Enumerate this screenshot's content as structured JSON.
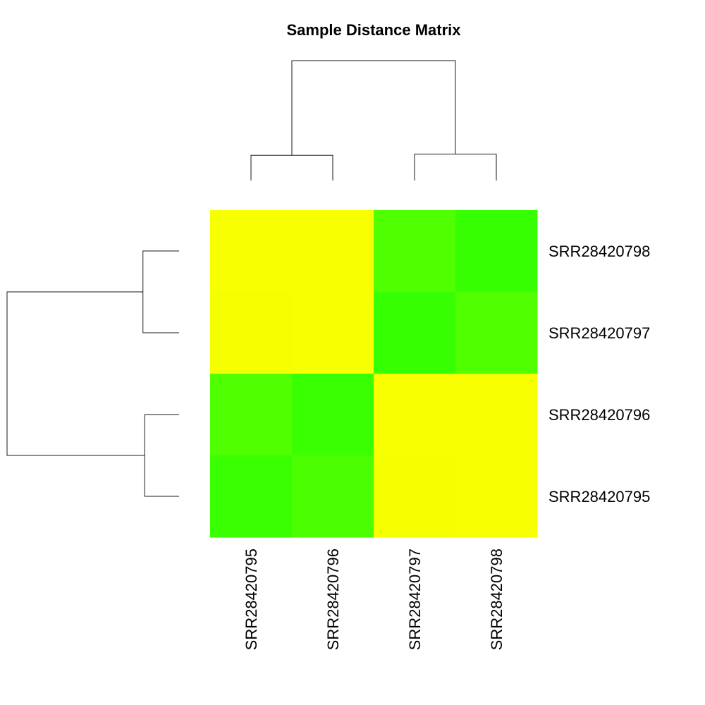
{
  "chart_data": {
    "type": "heatmap",
    "title": "Sample Distance Matrix",
    "columns": [
      "SRR28420795",
      "SRR28420796",
      "SRR28420797",
      "SRR28420798"
    ],
    "rows": [
      "SRR28420798",
      "SRR28420797",
      "SRR28420796",
      "SRR28420795"
    ],
    "values": [
      [
        0.97,
        0.97,
        0.22,
        0.1
      ],
      [
        0.96,
        0.97,
        0.1,
        0.22
      ],
      [
        0.22,
        0.12,
        0.97,
        0.97
      ],
      [
        0.12,
        0.2,
        0.96,
        0.97
      ]
    ],
    "color_scale": {
      "low": "#1EFF00",
      "high": "#FFFF00"
    },
    "column_dendrogram": [
      {
        "left": [
          "SRR28420795"
        ],
        "right": [
          "SRR28420796"
        ],
        "height": 0.21
      },
      {
        "left": [
          "SRR28420797"
        ],
        "right": [
          "SRR28420798"
        ],
        "height": 0.22
      },
      {
        "left": [
          "SRR28420795",
          "SRR28420796"
        ],
        "right": [
          "SRR28420797",
          "SRR28420798"
        ],
        "height": 1.0
      }
    ],
    "row_dendrogram": [
      {
        "left": [
          "SRR28420798"
        ],
        "right": [
          "SRR28420797"
        ],
        "height": 0.21
      },
      {
        "left": [
          "SRR28420796"
        ],
        "right": [
          "SRR28420795"
        ],
        "height": 0.2
      },
      {
        "left": [
          "SRR28420798",
          "SRR28420797"
        ],
        "right": [
          "SRR28420796",
          "SRR28420795"
        ],
        "height": 1.0
      }
    ]
  }
}
